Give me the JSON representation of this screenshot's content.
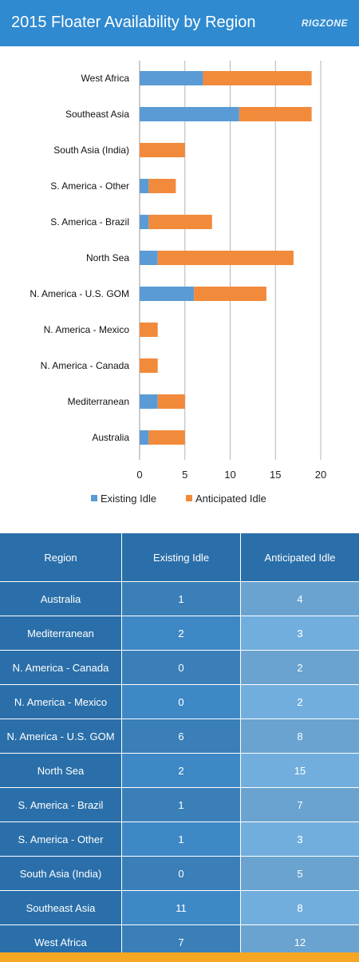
{
  "header": {
    "title": "2015 Floater Availability by Region",
    "logo_text": "RIGZONE"
  },
  "colors": {
    "header_bg": "#2f8ad0",
    "existing": "#5a9bd5",
    "anticipated": "#f28a3b",
    "table_header": "#2a6fa9",
    "table_col_dark": "#3a7fb8",
    "table_col_light": "#6aa3cf",
    "footer": "#f5a623"
  },
  "chart_data": {
    "type": "bar",
    "orientation": "horizontal",
    "stacked": true,
    "categories": [
      "West Africa",
      "Southeast Asia",
      "South Asia (India)",
      "S. America - Other",
      "S. America - Brazil",
      "North Sea",
      "N. America - U.S. GOM",
      "N. America - Mexico",
      "N. America - Canada",
      "Mediterranean",
      "Australia"
    ],
    "series": [
      {
        "name": "Existing Idle",
        "values": [
          7,
          11,
          0,
          1,
          1,
          2,
          6,
          0,
          0,
          2,
          1
        ]
      },
      {
        "name": "Anticipated Idle",
        "values": [
          12,
          8,
          5,
          3,
          7,
          15,
          8,
          2,
          2,
          3,
          4
        ]
      }
    ],
    "xlim": [
      0,
      20
    ],
    "xticks": [
      "0",
      "5",
      "10",
      "15",
      "20"
    ],
    "grid": true,
    "legend_position": "bottom"
  },
  "table": {
    "headers": [
      "Region",
      "Existing Idle",
      "Anticipated Idle"
    ],
    "rows": [
      [
        "Australia",
        "1",
        "4"
      ],
      [
        "Mediterranean",
        "2",
        "3"
      ],
      [
        "N. America - Canada",
        "0",
        "2"
      ],
      [
        "N. America - Mexico",
        "0",
        "2"
      ],
      [
        "N. America - U.S. GOM",
        "6",
        "8"
      ],
      [
        "North Sea",
        "2",
        "15"
      ],
      [
        "S. America - Brazil",
        "1",
        "7"
      ],
      [
        "S. America - Other",
        "1",
        "3"
      ],
      [
        "South Asia (India)",
        "0",
        "5"
      ],
      [
        "Southeast Asia",
        "11",
        "8"
      ],
      [
        "West Africa",
        "7",
        "12"
      ]
    ]
  }
}
